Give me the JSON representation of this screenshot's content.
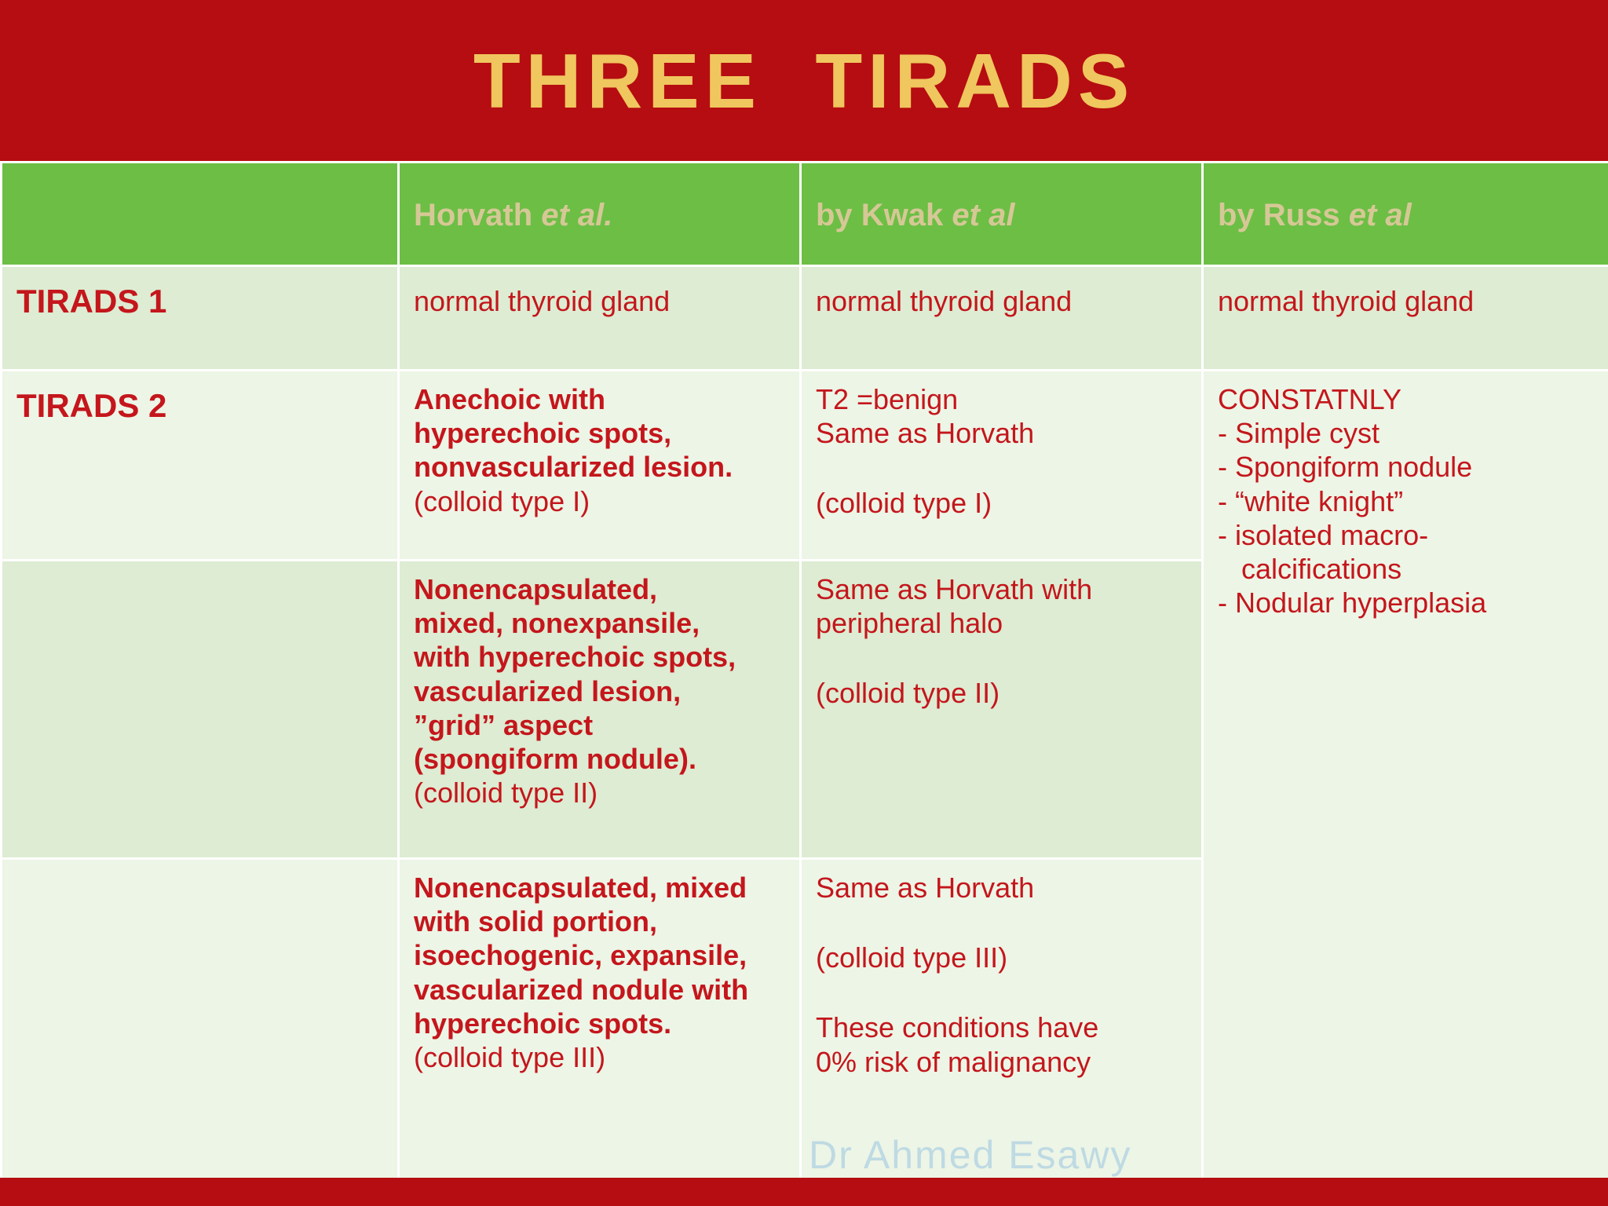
{
  "slide": {
    "title": "THREE  TIRADS",
    "watermark": "Dr Ahmed Esawy"
  },
  "colors": {
    "banner_red": "#b50d11",
    "header_green": "#6cbe45",
    "header_text_tan": "#d6c896",
    "title_gold": "#f0c65e",
    "body_text_red": "#c4161c",
    "band_light": "#edf5e6",
    "band_mid": "#ddecd2"
  },
  "table": {
    "col_headers": [
      {
        "name": "Horvath ",
        "etal": "et al."
      },
      {
        "name": "by Kwak ",
        "etal": "et al"
      },
      {
        "name": "by Russ ",
        "etal": "et al"
      }
    ],
    "rows": {
      "tirads1": {
        "label": "TIRADS 1",
        "horvath": "normal thyroid gland",
        "kwak": "normal thyroid gland",
        "russ": "normal thyroid gland"
      },
      "tirads2": {
        "label": "TIRADS 2",
        "sub_a": {
          "horvath_bold": "Anechoic with\nhyperechoic spots,\nnonvascularized lesion.",
          "horvath_note": "(colloid type I)",
          "kwak_line1": "T2 =benign",
          "kwak_line2": "Same as Horvath",
          "kwak_note": "(colloid type I)"
        },
        "sub_b": {
          "horvath_bold": "Nonencapsulated,\nmixed, nonexpansile,\nwith hyperechoic spots,\nvascularized lesion,\n”grid” aspect\n(spongiform nodule).",
          "horvath_note": "(colloid type II)",
          "kwak_line1": "Same as Horvath with\nperipheral halo",
          "kwak_note": "(colloid type II)"
        },
        "sub_c": {
          "horvath_bold": "Nonencapsulated, mixed\nwith solid portion,\nisoechogenic, expansile,\nvascularized nodule with\nhyperechoic spots.",
          "horvath_note": "(colloid type III)",
          "kwak_line1": "Same as Horvath",
          "kwak_note": "(colloid type III)",
          "kwak_extra": "These conditions have\n0% risk of malignancy"
        },
        "russ": "CONSTATNLY\n- Simple cyst\n- Spongiform nodule\n- “white knight”\n- isolated macro-\n   calcifications\n- Nodular hyperplasia"
      }
    }
  }
}
